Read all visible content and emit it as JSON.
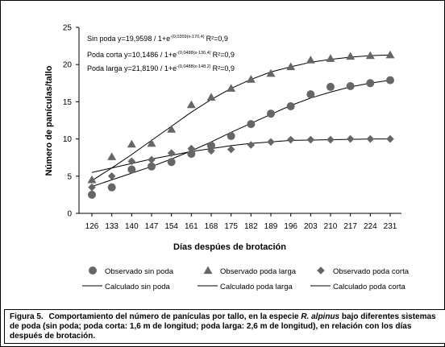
{
  "chart_data": {
    "type": "scatter",
    "xlabel": "Días despúes de brotación",
    "ylabel": "Número de panículas/tallo",
    "x": [
      126,
      133,
      140,
      147,
      154,
      161,
      168,
      175,
      182,
      189,
      196,
      203,
      210,
      217,
      224,
      231
    ],
    "xlim": [
      126,
      231
    ],
    "ylim": [
      0,
      25
    ],
    "yticks": [
      0,
      5,
      10,
      15,
      20,
      25
    ],
    "series": [
      {
        "name": "Observado sin poda",
        "marker": "circle",
        "values": [
          2.5,
          3.5,
          5.9,
          6.3,
          6.9,
          8.0,
          9.1,
          10.4,
          12.0,
          13.4,
          14.4,
          16.0,
          17.0,
          17.1,
          17.5,
          17.9
        ]
      },
      {
        "name": "Observado poda larga",
        "marker": "triangle",
        "values": [
          4.5,
          7.6,
          9.3,
          9.4,
          11.3,
          14.6,
          15.6,
          16.8,
          18.0,
          18.8,
          19.7,
          20.6,
          20.8,
          21.1,
          21.2,
          21.3
        ]
      },
      {
        "name": "Observado poda corta",
        "marker": "diamond",
        "values": [
          3.5,
          5.0,
          7.0,
          7.2,
          8.1,
          8.7,
          8.4,
          8.6,
          9.2,
          9.6,
          9.9,
          9.9,
          9.9,
          10.0,
          10.0,
          10.0
        ]
      },
      {
        "name": "Calculado sin poda",
        "line": "solid",
        "values": [
          3.6,
          4.5,
          5.4,
          6.3,
          7.3,
          8.4,
          9.6,
          10.9,
          12.1,
          13.3,
          14.5,
          15.5,
          16.3,
          17.0,
          17.5,
          17.9
        ]
      },
      {
        "name": "Calculado poda larga",
        "line": "solid",
        "values": [
          4.4,
          6.1,
          7.9,
          9.8,
          11.7,
          13.6,
          15.3,
          16.8,
          18.0,
          19.0,
          19.7,
          20.3,
          20.7,
          21.0,
          21.2,
          21.3
        ]
      },
      {
        "name": "Calculado poda corta",
        "line": "solid",
        "values": [
          5.5,
          6.1,
          6.7,
          7.3,
          7.8,
          8.3,
          8.7,
          9.1,
          9.4,
          9.6,
          9.8,
          9.85,
          9.9,
          9.95,
          10.0,
          10.0
        ]
      }
    ],
    "annotations": [
      {
        "label": "Sin poda y=19,9598 / 1+e",
        "exponent": "-(0,0359(x-170,4)",
        "r2": "R²=0,9"
      },
      {
        "label": "Poda corta y=10,1486 / 1+e",
        "exponent": "-(0,0488(x-136,4)",
        "r2": "R²=0,9"
      },
      {
        "label": "Poda larga y=21,8190 / 1+e",
        "exponent": "-(0,0488(x-148,2)",
        "r2": "R²=0,9"
      }
    ],
    "legend_placement": "bottom",
    "grid": false
  },
  "caption": {
    "lead": "Figura 5.",
    "text_before_species": "Comportamiento del número de panículas por tallo, en la especie ",
    "species": "R. alpinus",
    "text_after_species": " bajo diferentes sistemas de poda (sin poda; poda corta: 1,6 m de longitud; poda larga: 2,6 m de longitud), en relación con los días después de brotación."
  }
}
